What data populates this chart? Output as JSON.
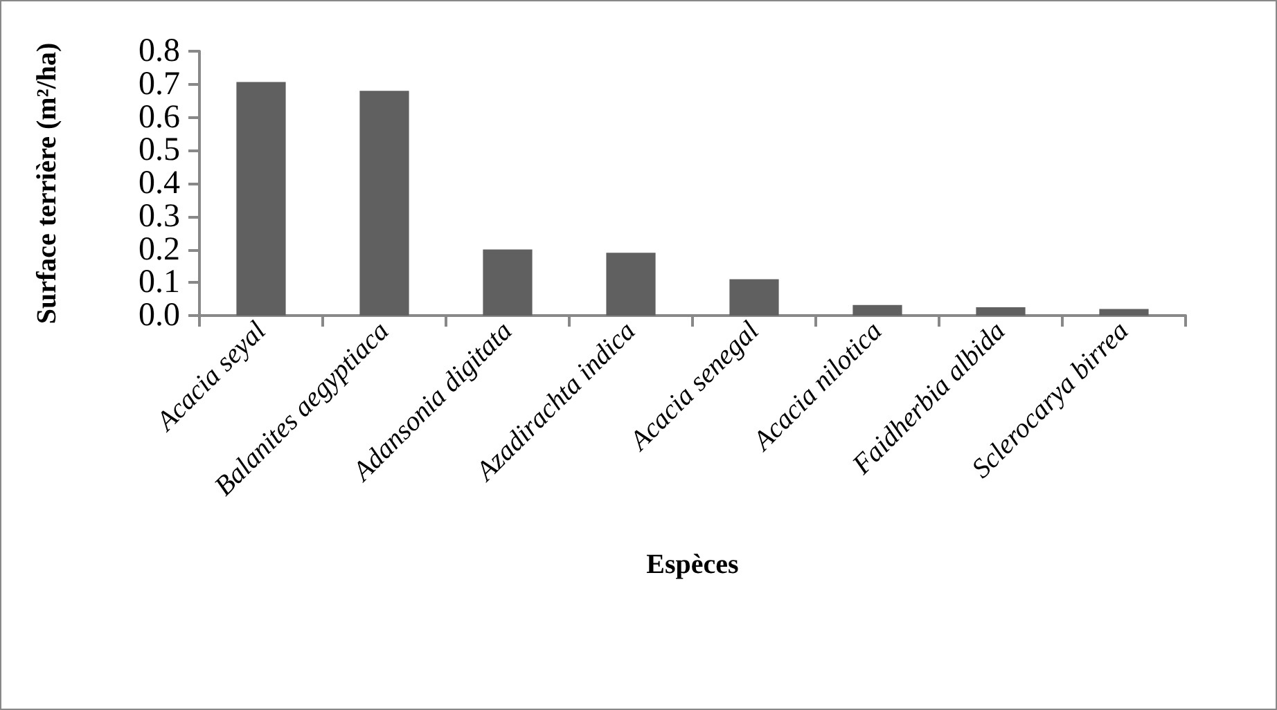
{
  "chart_data": {
    "type": "bar",
    "xlabel": "Espèces",
    "ylabel": "Surface terrière (m²/ha)",
    "categories": [
      "Acacia seyal",
      "Balanites aegyptiaca",
      "Adansonia digitata",
      "Azadirachta indica",
      "Acacia senegal",
      "Acacia nilotica",
      "Faidherbia albida",
      "Sclerocarya birrea"
    ],
    "values": [
      0.707,
      0.68,
      0.2,
      0.19,
      0.11,
      0.032,
      0.025,
      0.02
    ],
    "color": "#606060",
    "ylim": [
      0,
      0.8
    ],
    "yticks": [
      {
        "value": 0,
        "label": "0.0"
      },
      {
        "value": 0.1,
        "label": "0.1"
      },
      {
        "value": 0.2,
        "label": "0.2"
      },
      {
        "value": 0.3,
        "label": "0.3"
      },
      {
        "value": 0.4,
        "label": "0.4"
      },
      {
        "value": 0.5,
        "label": "0.5"
      },
      {
        "value": 0.6,
        "label": "0.6"
      },
      {
        "value": 0.7,
        "label": "0.7"
      },
      {
        "value": 0.8,
        "label": "0.8"
      }
    ],
    "grid": false
  }
}
